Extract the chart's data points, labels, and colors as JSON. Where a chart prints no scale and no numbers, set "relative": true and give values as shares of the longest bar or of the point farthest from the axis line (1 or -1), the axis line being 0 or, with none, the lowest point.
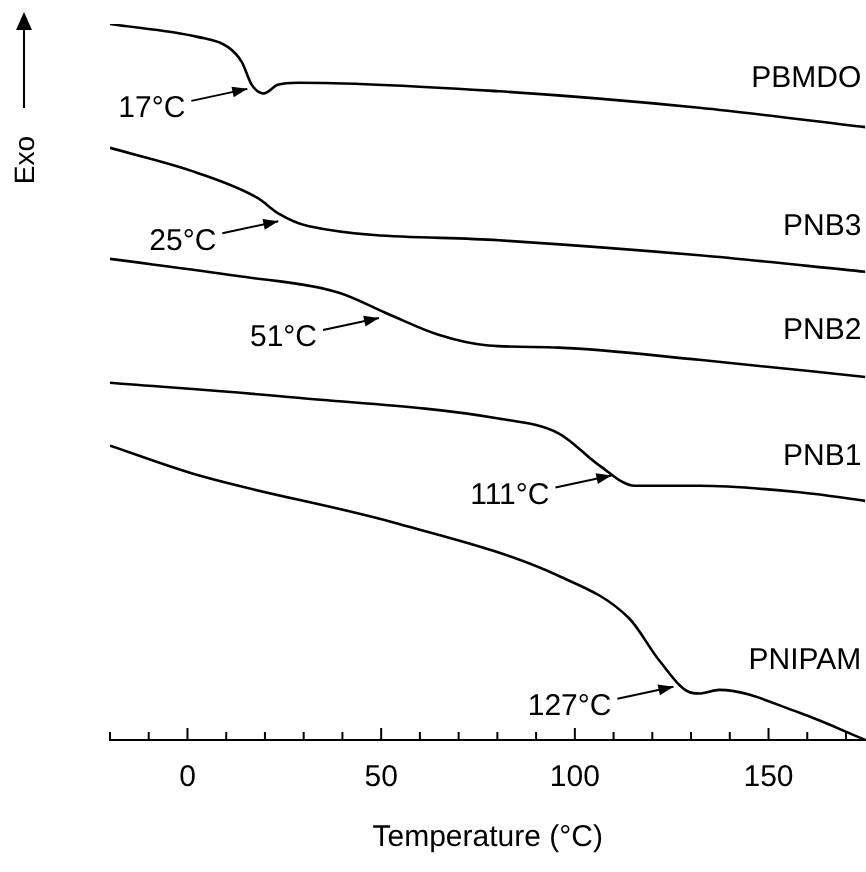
{
  "chart_data": {
    "type": "line",
    "relative": true,
    "xlabel": "Temperature (°C)",
    "ylabel": "Exo",
    "xlim": [
      -20,
      175
    ],
    "xticks": [
      {
        "value": -20,
        "label": null
      },
      {
        "value": -10,
        "label": null
      },
      0,
      {
        "value": 10,
        "label": null
      },
      {
        "value": 20,
        "label": null
      },
      {
        "value": 30,
        "label": null
      },
      {
        "value": 40,
        "label": null
      },
      50,
      {
        "value": 60,
        "label": null
      },
      {
        "value": 70,
        "label": null
      },
      {
        "value": 80,
        "label": null
      },
      {
        "value": 90,
        "label": null
      },
      100,
      {
        "value": 110,
        "label": null
      },
      {
        "value": 120,
        "label": null
      },
      {
        "value": 130,
        "label": null
      },
      {
        "value": 140,
        "label": null
      },
      150,
      {
        "value": 160,
        "label": null
      },
      {
        "value": 170,
        "label": null
      }
    ],
    "grid": false,
    "legend": false,
    "marker": "none",
    "line_style": "solid",
    "series": [
      {
        "name": "PBMDO",
        "color": "#000000",
        "x": [
          -20,
          2.6,
          10.4,
          14,
          16.6,
          19.7,
          23.3,
          28.5,
          80.3,
          132.1,
          175
        ],
        "values": [
          1.0,
          0.982,
          0.968,
          0.947,
          0.915,
          0.903,
          0.915,
          0.918,
          0.906,
          0.883,
          0.856
        ]
      },
      {
        "name": "PNB3",
        "color": "#000000",
        "x": [
          -20,
          2.6,
          18.1,
          23.3,
          31.1,
          80.3,
          132.1,
          175
        ],
        "values": [
          0.827,
          0.792,
          0.757,
          0.736,
          0.718,
          0.698,
          0.677,
          0.654
        ]
      },
      {
        "name": "PNB2",
        "color": "#000000",
        "x": [
          -20,
          13,
          38.9,
          51.8,
          64.8,
          77.7,
          95.9,
          132.1,
          175
        ],
        "values": [
          0.672,
          0.648,
          0.625,
          0.595,
          0.566,
          0.551,
          0.548,
          0.531,
          0.507
        ]
      },
      {
        "name": "PNB1",
        "color": "#000000",
        "x": [
          -20,
          28.5,
          80.3,
          95.9,
          106.2,
          115.5,
          132.1,
          158,
          175
        ],
        "values": [
          0.499,
          0.478,
          0.449,
          0.428,
          0.384,
          0.355,
          0.355,
          0.346,
          0.334
        ]
      },
      {
        "name": "PNIPAM",
        "color": "#000000",
        "x": [
          -20,
          2.6,
          54.4,
          95.9,
          114,
          121.8,
          129.5,
          132.1,
          137.3,
          158,
          175
        ],
        "values": [
          0.411,
          0.37,
          0.302,
          0.229,
          0.17,
          0.111,
          0.067,
          0.065,
          0.07,
          0.038,
          0
        ]
      }
    ],
    "annotations": [
      {
        "text": "17°C",
        "x": 17,
        "y": 0.915
      },
      {
        "text": "25°C",
        "x": 25,
        "y": 0.73
      },
      {
        "text": "51°C",
        "x": 51,
        "y": 0.595
      },
      {
        "text": "111°C",
        "x": 111,
        "y": 0.375
      },
      {
        "text": "127°C",
        "x": 127,
        "y": 0.08
      }
    ]
  }
}
